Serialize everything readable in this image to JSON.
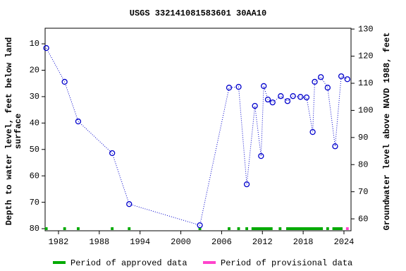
{
  "chart_data": {
    "type": "scatter",
    "title": "USGS 332141081583601 30AA10",
    "y_label": [
      "Depth to water level, feet below land",
      "surface"
    ],
    "y2_label": "Groundwater level above NAVD 1988, feet",
    "xlim": [
      1980.03,
      2025.04
    ],
    "xticks": [
      1982,
      1988,
      1994,
      2000,
      2006,
      2012,
      2018,
      2024
    ],
    "ylim": [
      4.1,
      80.8
    ],
    "y_inverted": true,
    "yticks": [
      10,
      20,
      30,
      40,
      50,
      60,
      70,
      80
    ],
    "y2lim": [
      130.3,
      55.6
    ],
    "y2ticks": [
      60,
      70,
      80,
      90,
      100,
      110,
      120,
      130
    ],
    "series": [
      {
        "color": "#0000cc",
        "line_style": "dotted",
        "x": [
          1980.2,
          1982.9,
          1984.9,
          1989.9,
          1992.4,
          2002.8,
          2007.1,
          2008.5,
          2009.7,
          2010.9,
          2011.8,
          2012.2,
          2012.8,
          2013.5,
          2014.7,
          2015.7,
          2016.5,
          2017.6,
          2018.5,
          2019.4,
          2019.7,
          2020.6,
          2021.6,
          2022.7,
          2023.6,
          2024.5
        ],
        "values": [
          11.6,
          24.4,
          39.4,
          51.4,
          70.7,
          78.7,
          26.6,
          26.3,
          63.2,
          33.5,
          52.5,
          26.0,
          31.1,
          32.2,
          29.8,
          31.7,
          29.8,
          30.1,
          30.3,
          43.4,
          24.4,
          22.6,
          26.6,
          48.8,
          22.3,
          23.4
        ]
      }
    ],
    "periods": [
      {
        "name": "Period of approved data",
        "color": "#00aa00",
        "ranges": [
          [
            1980.0,
            1980.4
          ],
          [
            1982.7,
            1983.1
          ],
          [
            1984.7,
            1985.1
          ],
          [
            1989.7,
            1990.1
          ],
          [
            1992.2,
            1992.6
          ],
          [
            2002.6,
            2003.0
          ],
          [
            2006.9,
            2007.3
          ],
          [
            2008.3,
            2008.7
          ],
          [
            2009.5,
            2009.9
          ],
          [
            2010.4,
            2013.5
          ],
          [
            2014.4,
            2014.8
          ],
          [
            2015.5,
            2020.9
          ],
          [
            2021.4,
            2021.8
          ],
          [
            2022.3,
            2023.8
          ]
        ]
      },
      {
        "name": "Period of provisional data",
        "color": "#ff44cc",
        "ranges": [
          [
            2024.3,
            2024.7
          ]
        ]
      }
    ]
  }
}
